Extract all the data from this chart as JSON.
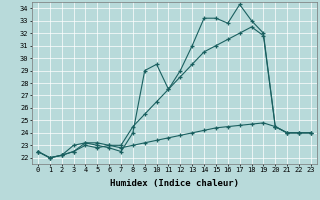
{
  "xlabel": "Humidex (Indice chaleur)",
  "xlim": [
    -0.5,
    23.5
  ],
  "ylim": [
    21.5,
    34.5
  ],
  "yticks": [
    22,
    23,
    24,
    25,
    26,
    27,
    28,
    29,
    30,
    31,
    32,
    33,
    34
  ],
  "xticks": [
    0,
    1,
    2,
    3,
    4,
    5,
    6,
    7,
    8,
    9,
    10,
    11,
    12,
    13,
    14,
    15,
    16,
    17,
    18,
    19,
    20,
    21,
    22,
    23
  ],
  "bg_color": "#b8dada",
  "line_color": "#1a6060",
  "series1": [
    22.5,
    22.0,
    22.2,
    22.5,
    23.2,
    23.0,
    22.8,
    22.5,
    24.0,
    29.0,
    29.5,
    27.5,
    29.0,
    31.0,
    33.2,
    33.2,
    32.8,
    34.3,
    33.0,
    32.0,
    24.5,
    24.0,
    24.0,
    24.0
  ],
  "series2": [
    22.5,
    22.0,
    22.2,
    23.0,
    23.2,
    23.2,
    23.0,
    23.0,
    24.5,
    25.5,
    26.5,
    27.5,
    28.5,
    29.5,
    30.5,
    31.0,
    31.5,
    32.0,
    32.5,
    31.8,
    24.5,
    24.0,
    24.0,
    24.0
  ],
  "series3": [
    22.5,
    22.0,
    22.2,
    22.5,
    23.0,
    22.8,
    23.0,
    22.8,
    23.0,
    23.2,
    23.4,
    23.6,
    23.8,
    24.0,
    24.2,
    24.4,
    24.5,
    24.6,
    24.7,
    24.8,
    24.5,
    24.0,
    24.0,
    24.0
  ]
}
